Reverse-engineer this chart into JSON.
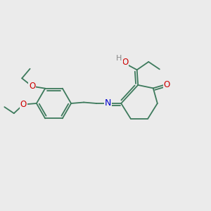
{
  "bg_color": "#ebebeb",
  "bond_color": "#3d7a5c",
  "bond_width": 1.3,
  "atom_colors": {
    "O": "#cc0000",
    "N": "#0000cc",
    "H": "#888888"
  },
  "figsize": [
    3.0,
    3.0
  ],
  "dpi": 100
}
